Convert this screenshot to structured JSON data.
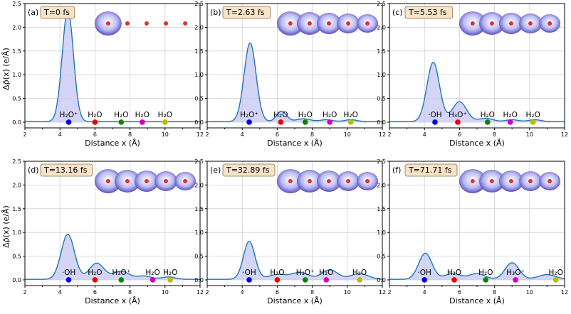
{
  "chart_data": {
    "type": "area",
    "ylabel": "Δρ̄(x) (e/Å)",
    "xlabel": "Distance x (Å)",
    "xlim": [
      2,
      12
    ],
    "ylim": [
      -0.12,
      2.5
    ],
    "xticks": [
      "2",
      "4",
      "6",
      "8",
      "10",
      "12"
    ],
    "yticks": [
      "0.0",
      "0.5",
      "1.0",
      "1.5",
      "2.0",
      "2.5"
    ],
    "grid": true,
    "line_color": "#1f77b4",
    "fill_color": "#c9c9f5",
    "panels": [
      {
        "tag": "(a)",
        "time": "T=0 fs",
        "peaks": [
          [
            4.45,
            2.35,
            0.32
          ]
        ],
        "markers": [
          {
            "x": 4.5,
            "label": "H₂O⁺",
            "color": "#0000ee"
          },
          {
            "x": 6.0,
            "label": "H₂O",
            "color": "#ee0000"
          },
          {
            "x": 7.5,
            "label": "H₂O",
            "color": "#008800"
          },
          {
            "x": 8.7,
            "label": "H₂O",
            "color": "#cc00cc"
          },
          {
            "x": 10.0,
            "label": "H₂O",
            "color": "#bbbb00"
          }
        ]
      },
      {
        "tag": "(b)",
        "time": "T=2.63 fs",
        "peaks": [
          [
            4.45,
            1.66,
            0.34
          ],
          [
            6.25,
            0.22,
            0.28
          ],
          [
            7.5,
            0.06,
            0.4
          ],
          [
            8.8,
            0.04,
            0.35
          ],
          [
            10.2,
            0.04,
            0.35
          ]
        ],
        "markers": [
          {
            "x": 4.4,
            "label": "H₂O⁺",
            "color": "#0000ee"
          },
          {
            "x": 6.2,
            "label": "H₂O",
            "color": "#ee0000"
          },
          {
            "x": 7.6,
            "label": "H₂O",
            "color": "#008800"
          },
          {
            "x": 9.0,
            "label": "H₂O",
            "color": "#cc00cc"
          },
          {
            "x": 10.2,
            "label": "H₂O",
            "color": "#bbbb00"
          }
        ]
      },
      {
        "tag": "(c)",
        "time": "T=5.53 fs",
        "peaks": [
          [
            4.5,
            1.25,
            0.36
          ],
          [
            6.0,
            0.42,
            0.4
          ],
          [
            7.5,
            0.07,
            0.4
          ],
          [
            9.0,
            0.04,
            0.35
          ],
          [
            10.3,
            0.04,
            0.35
          ]
        ],
        "markers": [
          {
            "x": 4.6,
            "label": "·OH",
            "color": "#0000ee"
          },
          {
            "x": 5.9,
            "label": "H₃O⁺",
            "color": "#ee0000"
          },
          {
            "x": 7.6,
            "label": "H₂O",
            "color": "#008800"
          },
          {
            "x": 8.9,
            "label": "H₂O",
            "color": "#cc00cc"
          },
          {
            "x": 10.2,
            "label": "H₂O",
            "color": "#bbbb00"
          }
        ]
      },
      {
        "tag": "(d)",
        "time": "T=13.16 fs",
        "peaks": [
          [
            4.45,
            0.95,
            0.38
          ],
          [
            6.1,
            0.34,
            0.42
          ],
          [
            7.5,
            0.17,
            0.45
          ],
          [
            8.8,
            0.07,
            0.4
          ],
          [
            10.2,
            0.05,
            0.4
          ]
        ],
        "markers": [
          {
            "x": 4.5,
            "label": "·OH",
            "color": "#0000ee"
          },
          {
            "x": 6.0,
            "label": "H₂O",
            "color": "#ee0000"
          },
          {
            "x": 7.5,
            "label": "H₃O⁺",
            "color": "#008800"
          },
          {
            "x": 9.3,
            "label": "H₂O",
            "color": "#cc00cc"
          },
          {
            "x": 10.3,
            "label": "H₂O",
            "color": "#bbbb00"
          }
        ]
      },
      {
        "tag": "(e)",
        "time": "T=32.89 fs",
        "peaks": [
          [
            4.4,
            0.8,
            0.33
          ],
          [
            6.0,
            0.1,
            0.5
          ],
          [
            7.3,
            0.14,
            0.5
          ],
          [
            9.0,
            0.2,
            0.45
          ],
          [
            10.7,
            0.12,
            0.5
          ]
        ],
        "markers": [
          {
            "x": 4.4,
            "label": "·OH",
            "color": "#0000ee"
          },
          {
            "x": 6.0,
            "label": "H₂O",
            "color": "#ee0000"
          },
          {
            "x": 7.6,
            "label": "H₃O⁺",
            "color": "#008800"
          },
          {
            "x": 8.8,
            "label": "H₂O",
            "color": "#cc00cc"
          },
          {
            "x": 10.7,
            "label": "H₂O",
            "color": "#bbbb00"
          }
        ]
      },
      {
        "tag": "(f)",
        "time": "T=71.71 fs",
        "peaks": [
          [
            4.05,
            0.55,
            0.38
          ],
          [
            5.6,
            0.12,
            0.45
          ],
          [
            7.0,
            0.12,
            0.45
          ],
          [
            9.0,
            0.35,
            0.4
          ],
          [
            11.0,
            0.1,
            0.5
          ]
        ],
        "markers": [
          {
            "x": 4.0,
            "label": "·OH",
            "color": "#0000ee"
          },
          {
            "x": 5.7,
            "label": "H₂O",
            "color": "#ee0000"
          },
          {
            "x": 7.5,
            "label": "H₂O",
            "color": "#008800"
          },
          {
            "x": 9.2,
            "label": "H₃O⁺",
            "color": "#cc00cc"
          },
          {
            "x": 11.5,
            "label": "H₂O",
            "color": "#bbbb00"
          }
        ]
      }
    ]
  }
}
